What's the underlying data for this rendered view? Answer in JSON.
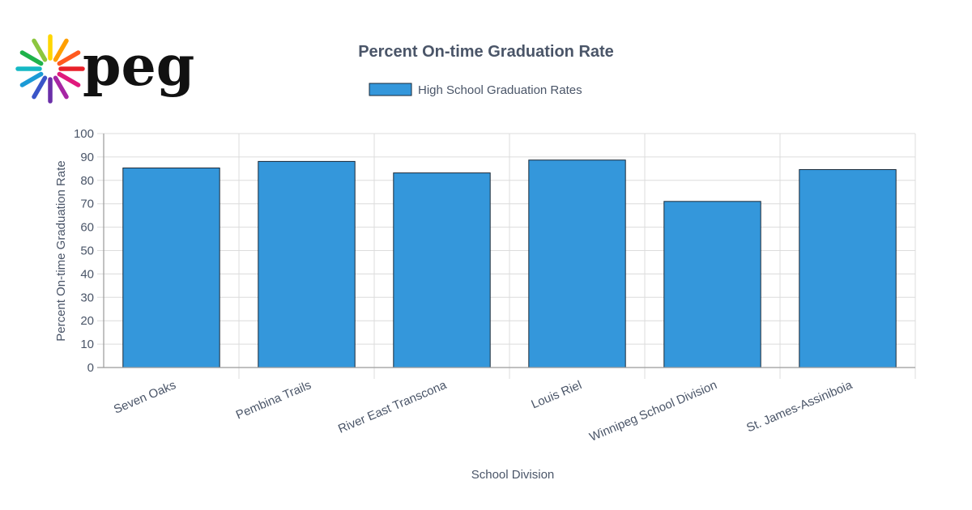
{
  "logo": {
    "text": "peg",
    "ray_colors": [
      "#ffd600",
      "#ff9f00",
      "#ff5a1f",
      "#e8202a",
      "#e0197c",
      "#a626a4",
      "#6a2fa8",
      "#3a55c8",
      "#1b9ad6",
      "#15b8c4",
      "#1fb24a",
      "#8cc63f"
    ]
  },
  "chart_data": {
    "type": "bar",
    "title": "Percent On-time Graduation Rate",
    "xlabel": "School Division",
    "ylabel": "Percent On-time Graduation Rate",
    "ylim": [
      0,
      100
    ],
    "yticks": [
      0,
      10,
      20,
      30,
      40,
      50,
      60,
      70,
      80,
      90,
      100
    ],
    "grid": true,
    "legend_position": "top-center",
    "categories": [
      "Seven Oaks",
      "Pembina Trails",
      "River East Transcona",
      "Louis Riel",
      "Winnipeg School Division",
      "St. James-Assiniboia"
    ],
    "series": [
      {
        "name": "High School Graduation Rates",
        "values": [
          85.3,
          88.1,
          83.2,
          88.7,
          71.0,
          84.6
        ],
        "color": "#3497db",
        "border_color": "#1a2a3a"
      }
    ]
  }
}
